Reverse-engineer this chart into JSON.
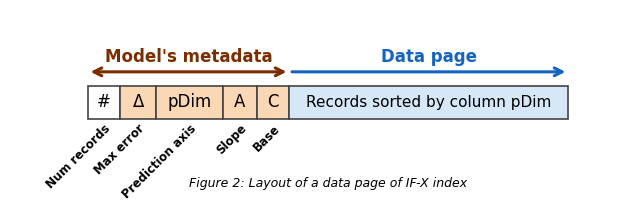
{
  "title_metadata": "Model's metadata",
  "title_datapage": "Data page",
  "metadata_color": "#7B2D00",
  "datapage_color": "#1565C0",
  "cell_labels": [
    "#",
    "Δ",
    "pDim",
    "A",
    "C"
  ],
  "cell_bg_white": "#FFFFFF",
  "cell_bg_orange": "#FAD7B5",
  "cell_bg_blue": "#D6E8F8",
  "record_label": "Records sorted by column pDim",
  "border_color": "#444444",
  "rotated_labels": [
    "Num records",
    "Max error",
    "Prediction axis",
    "Slope",
    "Base"
  ],
  "fig_width": 6.4,
  "fig_height": 2.2,
  "dpi": 100
}
